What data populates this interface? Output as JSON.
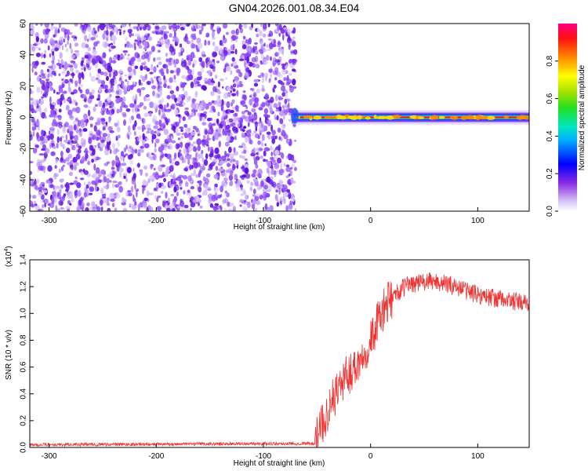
{
  "title": "GN04.2026.001.08.34.E04",
  "chart_data": [
    {
      "type": "heatmap",
      "xlabel": "Height of straight line (km)",
      "ylabel": "Frequency (Hz)",
      "xlim": [
        -318,
        148
      ],
      "ylim": [
        -60,
        60
      ],
      "x_ticks": [
        "-300",
        "-200",
        "-100",
        "0",
        "100"
      ],
      "y_ticks": [
        "-60",
        "-40",
        "-20",
        "0",
        "20",
        "40",
        "60"
      ],
      "noise_region_x": [
        -318,
        -70
      ],
      "tone_frequency_hz": 0,
      "colorbar_label": "Normalized spectral amplitude",
      "colorbar_ticks": [
        "0.0",
        "0.2",
        "0.4",
        "0.6",
        "0.8"
      ],
      "colorbar_range": [
        0,
        1
      ]
    },
    {
      "type": "line",
      "xlabel": "Height of straight line (km)",
      "ylabel": "SNR (10 * v/v)",
      "ymultiplier": "(x10",
      "ymultiplier_exp": "4",
      "ymultiplier_close": ")",
      "xlim": [
        -318,
        148
      ],
      "ylim": [
        0,
        1.4
      ],
      "x_ticks": [
        "-300",
        "-200",
        "-100",
        "0",
        "100"
      ],
      "y_ticks": [
        "0.0",
        "0.2",
        "0.4",
        "0.6",
        "0.8",
        "1.0",
        "1.2",
        "1.4"
      ],
      "series_color": "#ee3333",
      "envelope": [
        [
          -318,
          0.02
        ],
        [
          -52,
          0.03
        ],
        [
          -45,
          0.18
        ],
        [
          -30,
          0.45
        ],
        [
          -10,
          0.65
        ],
        [
          0,
          0.8
        ],
        [
          10,
          1.0
        ],
        [
          20,
          1.12
        ],
        [
          35,
          1.22
        ],
        [
          60,
          1.24
        ],
        [
          80,
          1.2
        ],
        [
          100,
          1.14
        ],
        [
          125,
          1.1
        ],
        [
          148,
          1.07
        ]
      ]
    }
  ]
}
